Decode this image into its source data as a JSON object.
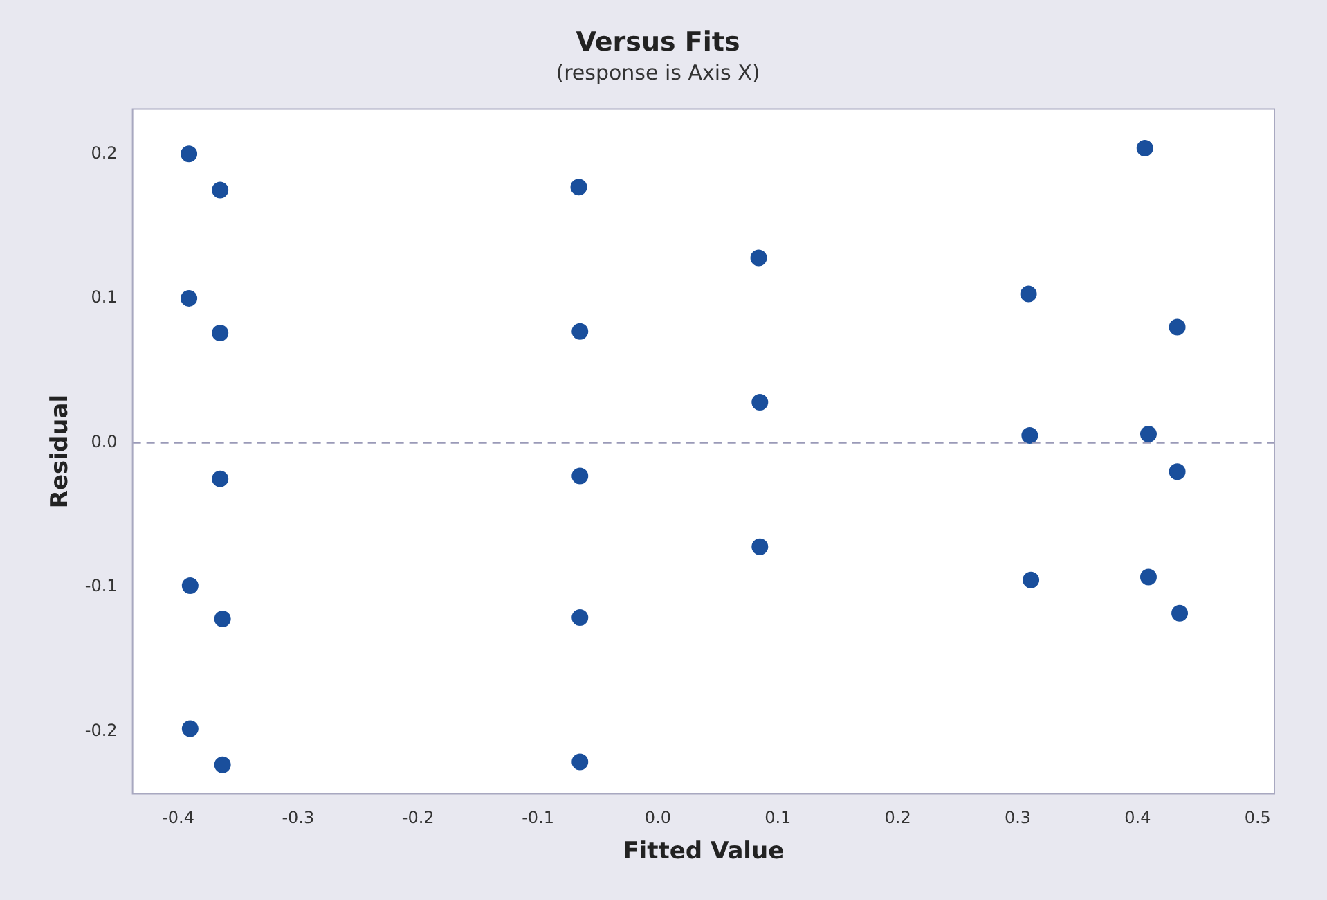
{
  "chart_data": {
    "type": "scatter",
    "title": "Versus Fits",
    "subtitle": "(response is Axis X)",
    "xlabel": "Fitted Value",
    "ylabel": "Residual",
    "x": [
      -0.391,
      -0.365,
      -0.391,
      -0.365,
      -0.365,
      -0.39,
      -0.363,
      -0.39,
      -0.363,
      -0.066,
      -0.065,
      -0.065,
      -0.065,
      -0.065,
      0.084,
      0.085,
      0.085,
      0.309,
      0.31,
      0.311,
      0.406,
      0.433,
      0.409,
      0.433,
      0.409,
      0.435
    ],
    "values": [
      0.2,
      0.175,
      0.1,
      0.076,
      -0.025,
      -0.099,
      -0.122,
      -0.198,
      -0.223,
      0.177,
      0.077,
      -0.023,
      -0.121,
      -0.221,
      0.128,
      0.028,
      -0.072,
      0.103,
      0.005,
      -0.095,
      0.204,
      0.08,
      0.006,
      -0.02,
      -0.093,
      -0.118
    ],
    "color": "#1a4f9c",
    "marker": "circle",
    "xlim": [
      -0.438,
      0.514
    ],
    "ylim": [
      -0.243,
      0.231
    ],
    "xticks": [
      -0.4,
      -0.3,
      -0.2,
      -0.1,
      {
        "value": 0,
        "label": "0.0"
      },
      0.1,
      0.2,
      0.3,
      0.4,
      0.5
    ],
    "yticks": [
      -0.2,
      -0.1,
      {
        "value": 0,
        "label": "0.0"
      },
      0.1,
      0.2
    ],
    "ref_lines": [
      {
        "axis": "y",
        "value": 0,
        "color": "#9a9ab8",
        "line_style": "dashed"
      }
    ],
    "grid": false,
    "legend": false
  }
}
